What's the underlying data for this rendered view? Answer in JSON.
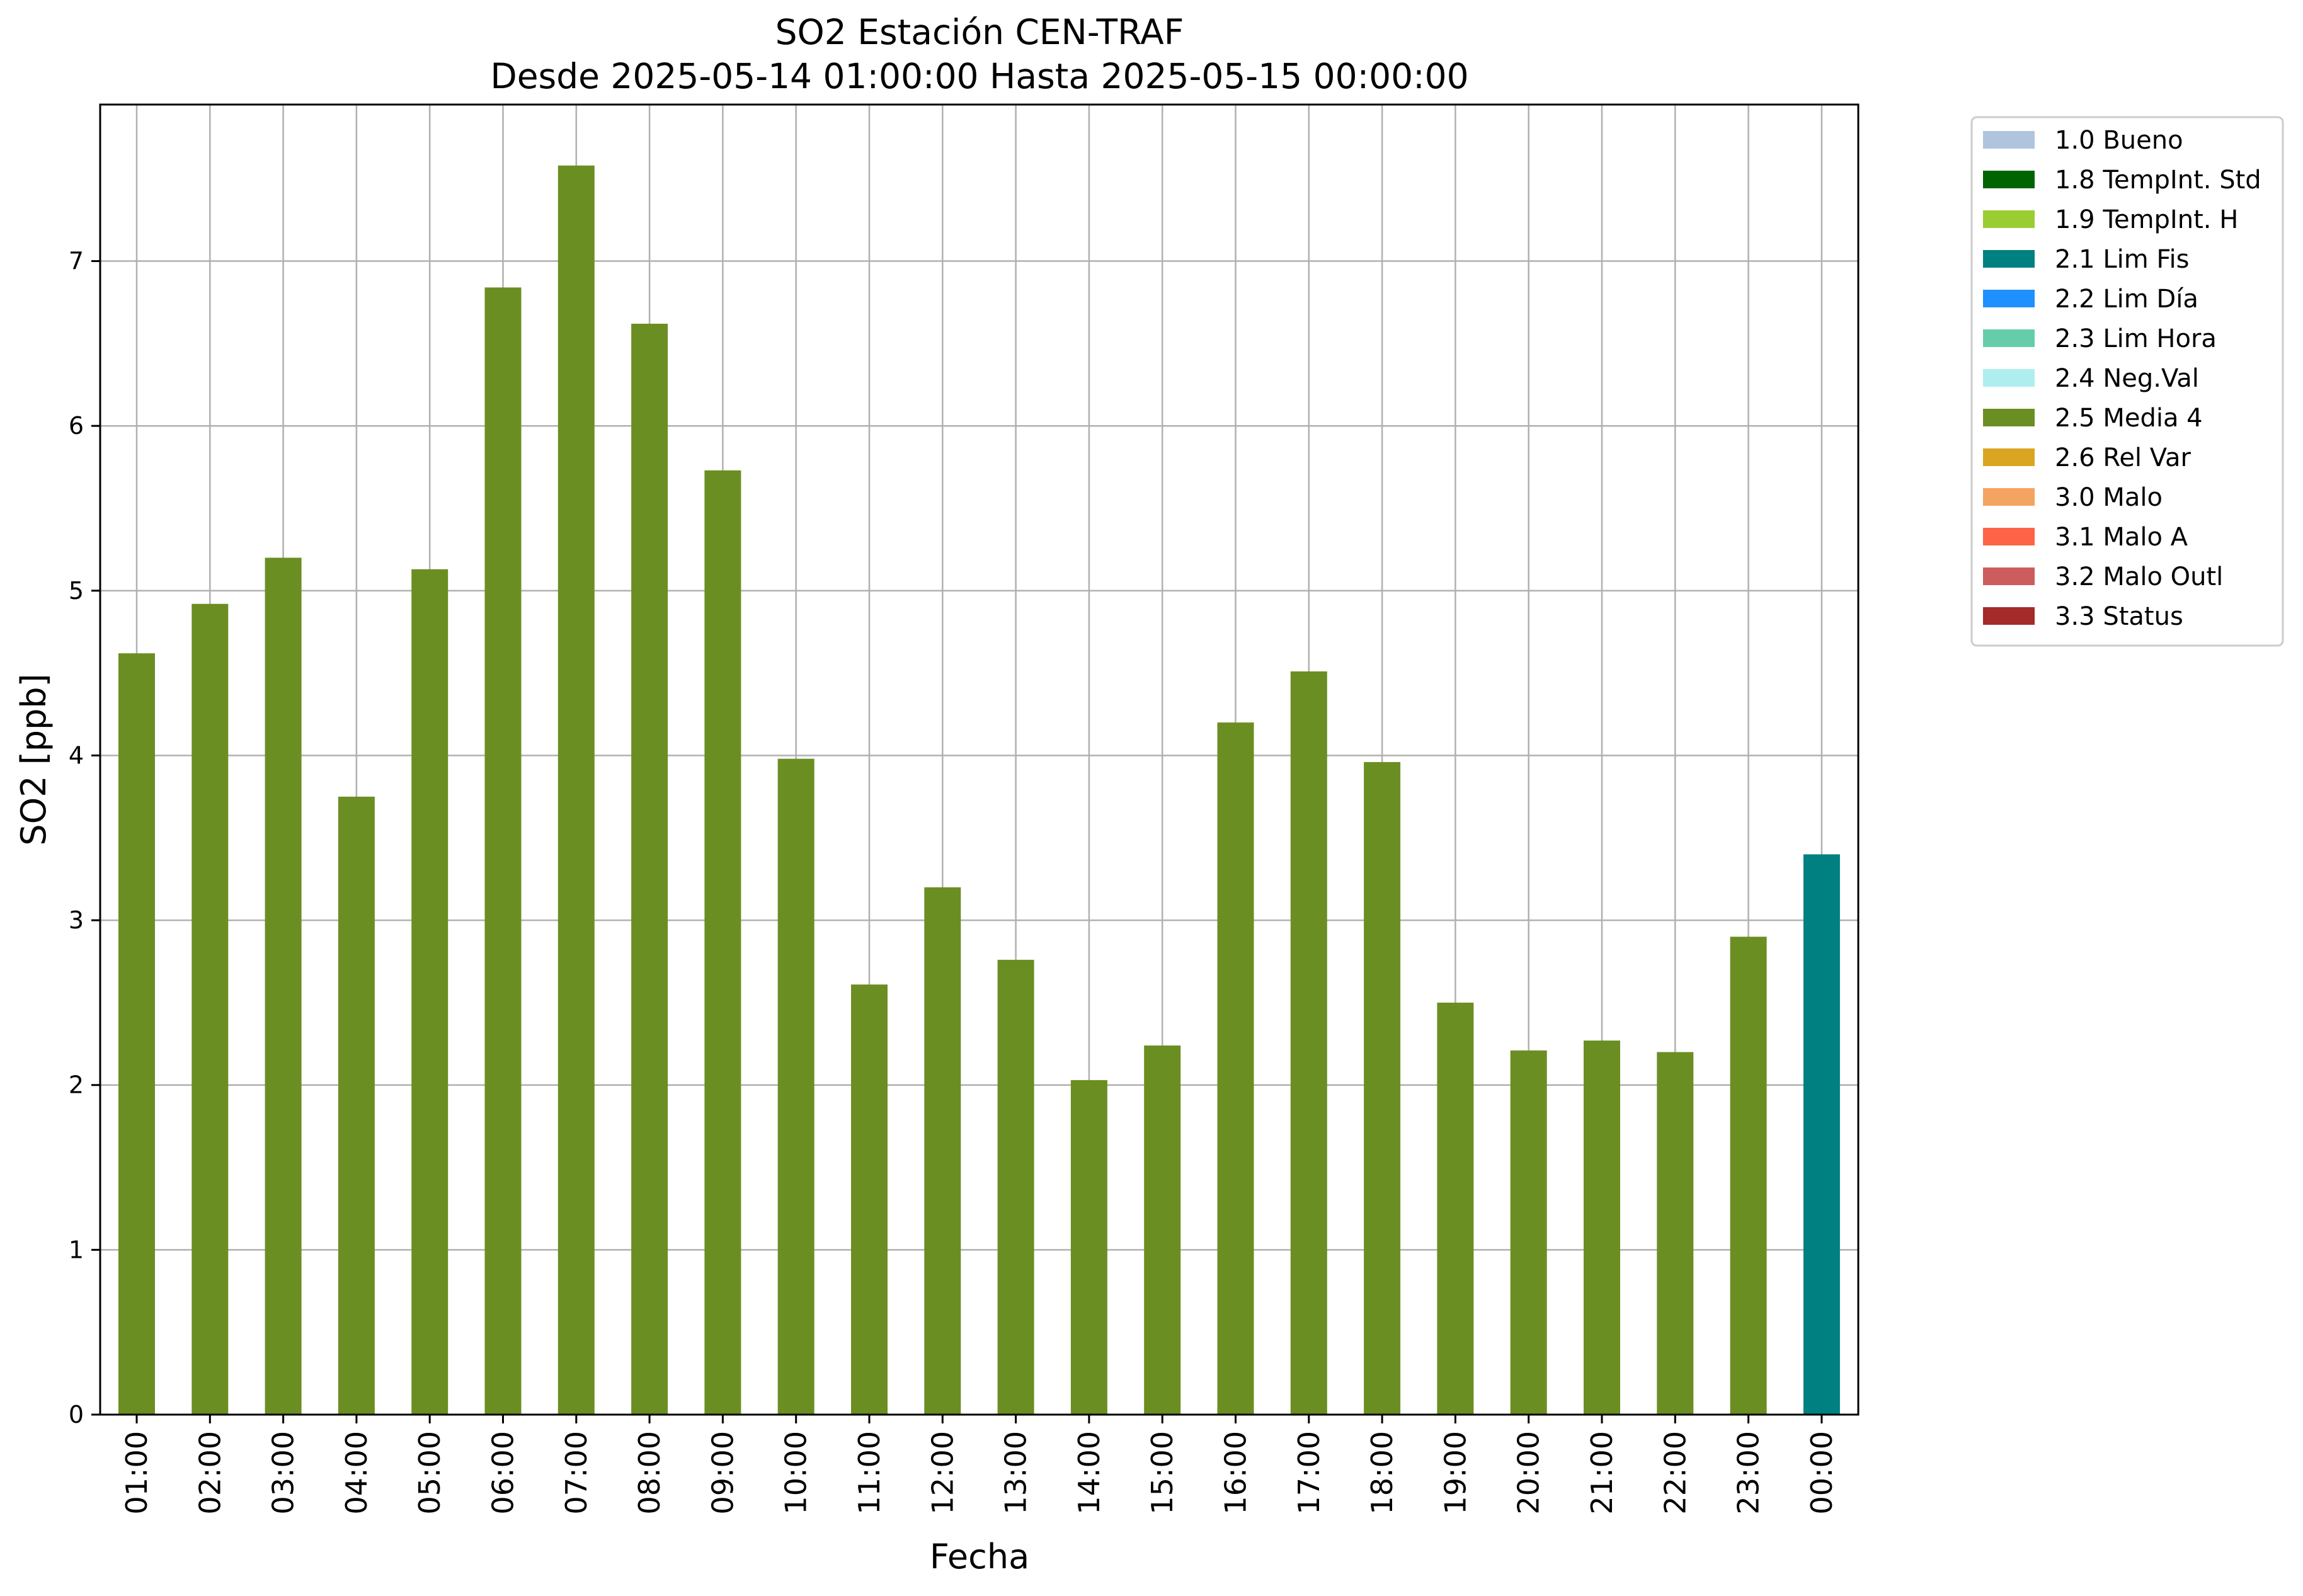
{
  "chart_data": {
    "type": "bar",
    "title": "SO2 Estación CEN-TRAF",
    "subtitle": "Desde 2025-05-14 01:00:00 Hasta 2025-05-15 00:00:00",
    "xlabel": "Fecha",
    "ylabel": "SO2 [ppb]",
    "ylim": [
      0,
      7.95
    ],
    "yticks": [
      0,
      1,
      2,
      3,
      4,
      5,
      6,
      7
    ],
    "grid": true,
    "legend_position": "outside-top-right",
    "categories": [
      "01:00",
      "02:00",
      "03:00",
      "04:00",
      "05:00",
      "06:00",
      "07:00",
      "08:00",
      "09:00",
      "10:00",
      "11:00",
      "12:00",
      "13:00",
      "14:00",
      "15:00",
      "16:00",
      "17:00",
      "18:00",
      "19:00",
      "20:00",
      "21:00",
      "22:00",
      "23:00",
      "00:00"
    ],
    "values": [
      4.62,
      4.92,
      5.2,
      3.75,
      5.13,
      6.84,
      7.58,
      6.62,
      5.73,
      3.98,
      2.61,
      3.2,
      2.76,
      2.03,
      2.24,
      4.2,
      4.51,
      3.96,
      2.5,
      2.21,
      2.27,
      2.2,
      2.9,
      3.4
    ],
    "flags": [
      "2.5 Media 4",
      "2.5 Media 4",
      "2.5 Media 4",
      "2.5 Media 4",
      "2.5 Media 4",
      "2.5 Media 4",
      "2.5 Media 4",
      "2.5 Media 4",
      "2.5 Media 4",
      "2.5 Media 4",
      "2.5 Media 4",
      "2.5 Media 4",
      "2.5 Media 4",
      "2.5 Media 4",
      "2.5 Media 4",
      "2.5 Media 4",
      "2.5 Media 4",
      "2.5 Media 4",
      "2.5 Media 4",
      "2.5 Media 4",
      "2.5 Media 4",
      "2.5 Media 4",
      "2.5 Media 4",
      "2.1 Lim Fis"
    ],
    "legend": [
      {
        "label": "1.0 Bueno",
        "color": "#b0c4de"
      },
      {
        "label": "1.8 TempInt. Std",
        "color": "#006400"
      },
      {
        "label": "1.9 TempInt. H",
        "color": "#9acd32"
      },
      {
        "label": "2.1 Lim Fis",
        "color": "#008080"
      },
      {
        "label": "2.2 Lim Día",
        "color": "#1e90ff"
      },
      {
        "label": "2.3 Lim Hora",
        "color": "#66cdaa"
      },
      {
        "label": "2.4 Neg.Val",
        "color": "#afeeee"
      },
      {
        "label": "2.5 Media 4",
        "color": "#6b8e23"
      },
      {
        "label": "2.6 Rel Var",
        "color": "#daa520"
      },
      {
        "label": "3.0 Malo",
        "color": "#f4a460"
      },
      {
        "label": "3.1 Malo A",
        "color": "#ff6347"
      },
      {
        "label": "3.2 Malo Outl",
        "color": "#cd5c5c"
      },
      {
        "label": "3.3 Status",
        "color": "#a52a2a"
      }
    ]
  }
}
